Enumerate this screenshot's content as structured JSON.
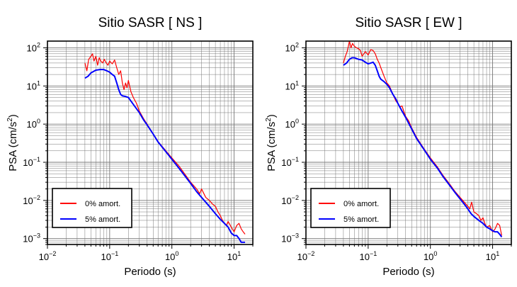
{
  "chart_data": [
    {
      "type": "line",
      "title": "Sitio SASR [ NS ]",
      "xlabel": "Periodo (s)",
      "ylabel_main": "PSA (cm/s",
      "ylabel_sup": "2",
      "ylabel_close": ")",
      "xscale": "log",
      "yscale": "log",
      "xlim": [
        0.01,
        20
      ],
      "ylim": [
        0.0007,
        150
      ],
      "grid": true,
      "legend_position": "bottom-left",
      "x_ticks": [
        {
          "base": "10",
          "exp": "−2",
          "value": 0.01
        },
        {
          "base": "10",
          "exp": "−1",
          "value": 0.1
        },
        {
          "base": "10",
          "exp": "0",
          "value": 1
        },
        {
          "base": "10",
          "exp": "1",
          "value": 10
        }
      ],
      "y_ticks": [
        {
          "base": "10",
          "exp": "−3",
          "value": 0.001
        },
        {
          "base": "10",
          "exp": "−2",
          "value": 0.01
        },
        {
          "base": "10",
          "exp": "−1",
          "value": 0.1
        },
        {
          "base": "10",
          "exp": "0",
          "value": 1
        },
        {
          "base": "10",
          "exp": "1",
          "value": 10
        },
        {
          "base": "10",
          "exp": "2",
          "value": 100
        }
      ],
      "series": [
        {
          "name": "0% amort.",
          "color": "#ff0000",
          "x": [
            0.04,
            0.043,
            0.046,
            0.05,
            0.053,
            0.056,
            0.06,
            0.064,
            0.068,
            0.072,
            0.077,
            0.082,
            0.088,
            0.094,
            0.1,
            0.11,
            0.12,
            0.13,
            0.14,
            0.15,
            0.16,
            0.17,
            0.18,
            0.19,
            0.2,
            0.22,
            0.24,
            0.27,
            0.3,
            0.35,
            0.4,
            0.5,
            0.6,
            0.8,
            1.0,
            1.3,
            1.6,
            2.0,
            2.5,
            2.8,
            3.0,
            3.5,
            4.0,
            4.5,
            5.0,
            5.5,
            6.0,
            6.5,
            7.0,
            7.5,
            8.0,
            9.0,
            10.0,
            11.0,
            12.0,
            13.0,
            14.0,
            15.0
          ],
          "y": [
            40,
            25,
            50,
            60,
            70,
            45,
            60,
            35,
            55,
            45,
            40,
            50,
            40,
            35,
            45,
            38,
            48,
            30,
            20,
            25,
            12,
            8,
            12,
            9,
            14,
            7,
            5,
            3.5,
            2.2,
            1.4,
            1.0,
            0.55,
            0.35,
            0.2,
            0.13,
            0.08,
            0.05,
            0.03,
            0.02,
            0.015,
            0.02,
            0.012,
            0.01,
            0.008,
            0.007,
            0.005,
            0.004,
            0.003,
            0.0025,
            0.0022,
            0.0028,
            0.002,
            0.0015,
            0.0022,
            0.0025,
            0.0018,
            0.0015,
            0.0013
          ]
        },
        {
          "name": "5% amort.",
          "color": "#0000ff",
          "x": [
            0.04,
            0.045,
            0.05,
            0.06,
            0.07,
            0.08,
            0.09,
            0.1,
            0.11,
            0.12,
            0.13,
            0.14,
            0.15,
            0.16,
            0.18,
            0.2,
            0.22,
            0.25,
            0.3,
            0.35,
            0.4,
            0.5,
            0.6,
            0.8,
            1.0,
            1.3,
            1.6,
            2.0,
            2.5,
            3.0,
            3.5,
            4.0,
            5.0,
            6.0,
            7.0,
            8.0,
            9.0,
            10.0,
            11.0,
            12.0,
            13.0,
            14.0,
            15.0
          ],
          "y": [
            16,
            18,
            22,
            26,
            27,
            27,
            25,
            23,
            20,
            18,
            12,
            8,
            6,
            5.5,
            5.3,
            5,
            4,
            3,
            2,
            1.3,
            0.95,
            0.55,
            0.34,
            0.19,
            0.12,
            0.07,
            0.045,
            0.028,
            0.017,
            0.012,
            0.009,
            0.007,
            0.0045,
            0.0032,
            0.0025,
            0.002,
            0.0014,
            0.0012,
            0.0012,
            0.001,
            0.0008,
            0.0008,
            0.0008
          ]
        }
      ]
    },
    {
      "type": "line",
      "title": "Sitio SASR [ EW ]",
      "xlabel": "Periodo (s)",
      "ylabel_main": "PSA (cm/s",
      "ylabel_sup": "2",
      "ylabel_close": ")",
      "xscale": "log",
      "yscale": "log",
      "xlim": [
        0.01,
        20
      ],
      "ylim": [
        0.0007,
        150
      ],
      "grid": true,
      "legend_position": "bottom-left",
      "x_ticks": [
        {
          "base": "10",
          "exp": "−2",
          "value": 0.01
        },
        {
          "base": "10",
          "exp": "−1",
          "value": 0.1
        },
        {
          "base": "10",
          "exp": "0",
          "value": 1
        },
        {
          "base": "10",
          "exp": "1",
          "value": 10
        }
      ],
      "y_ticks": [
        {
          "base": "10",
          "exp": "−3",
          "value": 0.001
        },
        {
          "base": "10",
          "exp": "−2",
          "value": 0.01
        },
        {
          "base": "10",
          "exp": "−1",
          "value": 0.1
        },
        {
          "base": "10",
          "exp": "0",
          "value": 1
        },
        {
          "base": "10",
          "exp": "1",
          "value": 10
        },
        {
          "base": "10",
          "exp": "2",
          "value": 100
        }
      ],
      "series": [
        {
          "name": "0% amort.",
          "color": "#ff0000",
          "x": [
            0.04,
            0.043,
            0.046,
            0.05,
            0.053,
            0.056,
            0.06,
            0.065,
            0.07,
            0.075,
            0.08,
            0.09,
            0.1,
            0.11,
            0.12,
            0.13,
            0.14,
            0.15,
            0.16,
            0.18,
            0.2,
            0.22,
            0.25,
            0.28,
            0.3,
            0.32,
            0.35,
            0.38,
            0.4,
            0.45,
            0.5,
            0.6,
            0.8,
            1.0,
            1.3,
            1.6,
            2.0,
            2.5,
            3.0,
            3.5,
            4.0,
            4.3,
            4.6,
            5.0,
            5.5,
            6.0,
            6.5,
            7.0,
            7.5,
            8.0,
            9.0,
            10.0,
            11.0,
            12.0,
            13.0,
            14.0
          ],
          "y": [
            40,
            60,
            80,
            150,
            100,
            130,
            110,
            100,
            95,
            85,
            60,
            80,
            65,
            90,
            85,
            70,
            50,
            40,
            30,
            18,
            12,
            10,
            6,
            4,
            3.5,
            2.8,
            3.0,
            2.0,
            1.6,
            1.2,
            0.8,
            0.45,
            0.22,
            0.13,
            0.075,
            0.045,
            0.028,
            0.017,
            0.012,
            0.009,
            0.007,
            0.006,
            0.009,
            0.005,
            0.0045,
            0.004,
            0.003,
            0.0035,
            0.0025,
            0.002,
            0.0022,
            0.0015,
            0.0018,
            0.0025,
            0.0022,
            0.0012
          ]
        },
        {
          "name": "5% amort.",
          "color": "#0000ff",
          "x": [
            0.04,
            0.045,
            0.05,
            0.055,
            0.06,
            0.07,
            0.08,
            0.09,
            0.1,
            0.11,
            0.12,
            0.13,
            0.14,
            0.15,
            0.16,
            0.18,
            0.2,
            0.22,
            0.25,
            0.28,
            0.3,
            0.35,
            0.4,
            0.5,
            0.6,
            0.8,
            1.0,
            1.3,
            1.6,
            2.0,
            2.5,
            3.0,
            3.5,
            4.0,
            4.5,
            5.0,
            6.0,
            7.0,
            8.0,
            9.0,
            10.0,
            11.0,
            12.0,
            13.0,
            14.0
          ],
          "y": [
            35,
            40,
            50,
            55,
            55,
            50,
            48,
            42,
            38,
            40,
            42,
            35,
            25,
            18,
            15,
            13,
            11,
            9,
            6,
            4.5,
            3.5,
            2.2,
            1.5,
            0.75,
            0.42,
            0.21,
            0.12,
            0.07,
            0.042,
            0.026,
            0.016,
            0.011,
            0.008,
            0.006,
            0.0045,
            0.0038,
            0.003,
            0.0025,
            0.002,
            0.0018,
            0.0016,
            0.0015,
            0.0015,
            0.0013,
            0.0011
          ]
        }
      ]
    }
  ]
}
